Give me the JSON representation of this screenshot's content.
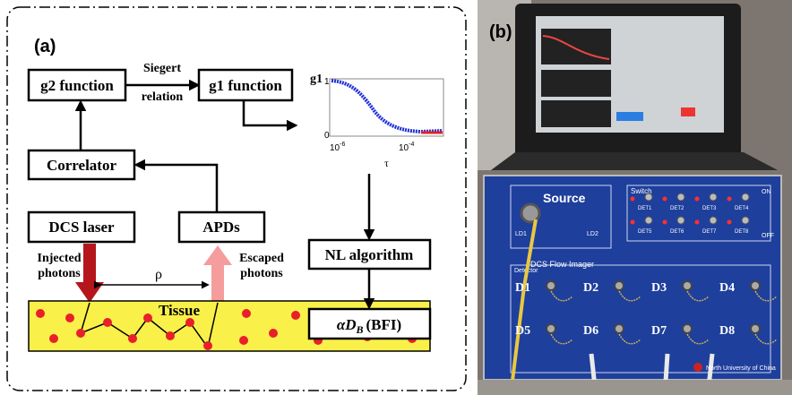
{
  "panel_a": {
    "label": "(a)",
    "nodes": {
      "g2": "g2 function",
      "g1": "g1 function",
      "correlator": "Correlator",
      "laser": "DCS laser",
      "apds": "APDs",
      "nl": "NL algorithm",
      "tissue": "Tissue"
    },
    "siegert": [
      "Siegert",
      "relation"
    ],
    "injected": [
      "Injected",
      "photons"
    ],
    "escaped": [
      "Escaped",
      "photons"
    ],
    "rho": "ρ",
    "tau": "τ",
    "formula": {
      "main": "αD",
      "sub": "B",
      "suffix": "(BFI)"
    },
    "inset": {
      "ylabel": "g1",
      "yticks": [
        "1",
        "0"
      ],
      "xticks": [
        {
          "base": "10",
          "exp": "-6"
        },
        {
          "base": "10",
          "exp": "-4"
        }
      ]
    }
  },
  "panel_b": {
    "label": "(b)",
    "source": "Source",
    "title": "DCS Flow Imager",
    "switch": "Switch",
    "detector": "Detector",
    "on": "ON",
    "off": "OFF",
    "ld": [
      "LD1",
      "LD2"
    ],
    "det_switch": [
      "DET1",
      "DET2",
      "DET3",
      "DET4",
      "DET5",
      "DET6",
      "DET7",
      "DET8"
    ],
    "detectors": [
      "D1",
      "D2",
      "D3",
      "D4",
      "D5",
      "D6",
      "D7",
      "D8"
    ],
    "maker": "North University of China"
  }
}
